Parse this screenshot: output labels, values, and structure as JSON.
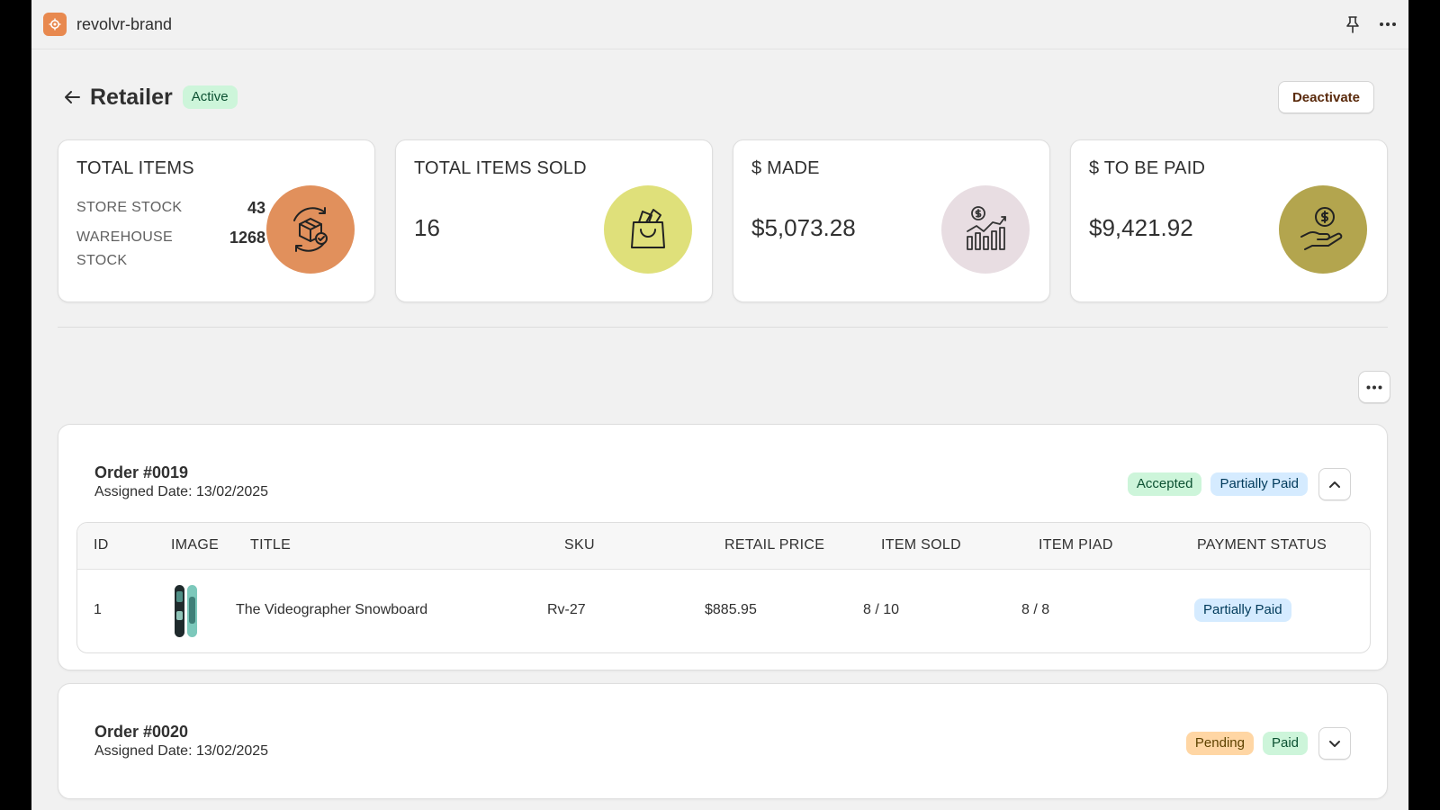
{
  "app": {
    "name": "revolvr-brand"
  },
  "page": {
    "title": "Retailer",
    "status_badge": "Active",
    "deactivate_label": "Deactivate"
  },
  "stats": {
    "total_items": {
      "label": "TOTAL ITEMS",
      "store_stock_label": "STORE STOCK",
      "store_stock_value": "43",
      "warehouse_stock_label": "WAREHOUSE STOCK",
      "warehouse_stock_value": "1268",
      "icon": "package-cycle-icon",
      "color": "#e1905c"
    },
    "total_items_sold": {
      "label": "TOTAL ITEMS SOLD",
      "value": "16",
      "icon": "shopping-bag-icon",
      "color": "#dfe07a"
    },
    "made": {
      "label": "$ MADE",
      "value": "$5,073.28",
      "icon": "revenue-chart-icon",
      "color": "#e8dde2"
    },
    "to_be_paid": {
      "label": "$ TO BE PAID",
      "value": "$9,421.92",
      "icon": "payment-hand-icon",
      "color": "#b3a54e"
    }
  },
  "orders": [
    {
      "title": "Order #0019",
      "assigned_date": "Assigned Date: 13/02/2025",
      "status": "Accepted",
      "payment": "Partially Paid",
      "expanded": true,
      "columns": [
        "ID",
        "IMAGE",
        "TITLE",
        "SKU",
        "RETAIL PRICE",
        "ITEM SOLD",
        "ITEM PIAD",
        "PAYMENT STATUS"
      ],
      "rows": [
        {
          "id": "1",
          "title": "The Videographer Snowboard",
          "sku": "Rv-27",
          "retail_price": "$885.95",
          "item_sold": "8 / 10",
          "item_paid": "8 / 8",
          "payment_status": "Partially Paid"
        }
      ]
    },
    {
      "title": "Order #0020",
      "assigned_date": "Assigned Date: 13/02/2025",
      "status": "Pending",
      "payment": "Paid",
      "expanded": false
    }
  ]
}
